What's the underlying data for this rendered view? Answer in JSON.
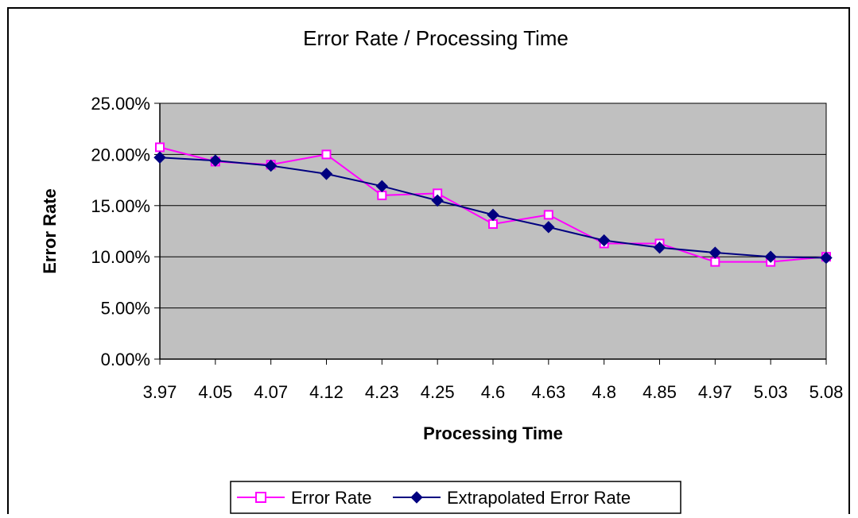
{
  "chart_data": {
    "type": "line",
    "title": "Error Rate / Processing Time",
    "xlabel": "Processing Time",
    "ylabel": "Error Rate",
    "categories": [
      "3.97",
      "4.05",
      "4.07",
      "4.12",
      "4.23",
      "4.25",
      "4.6",
      "4.63",
      "4.8",
      "4.85",
      "4.97",
      "5.03",
      "5.08"
    ],
    "y_ticks": [
      "0.00%",
      "5.00%",
      "10.00%",
      "15.00%",
      "20.00%",
      "25.00%"
    ],
    "ylim": [
      0,
      0.25
    ],
    "series": [
      {
        "name": "Error Rate",
        "color": "#ff00ff",
        "marker": "square",
        "values": [
          0.207,
          0.193,
          0.19,
          0.2,
          0.16,
          0.162,
          0.132,
          0.141,
          0.113,
          0.113,
          0.095,
          0.095,
          0.1
        ]
      },
      {
        "name": "Extrapolated Error Rate",
        "color": "#000080",
        "marker": "diamond",
        "values": [
          0.197,
          0.194,
          0.189,
          0.181,
          0.169,
          0.155,
          0.141,
          0.129,
          0.116,
          0.109,
          0.104,
          0.1,
          0.099
        ]
      }
    ],
    "grid": true,
    "plot_background": "#c0c0c0",
    "legend_position": "bottom"
  }
}
